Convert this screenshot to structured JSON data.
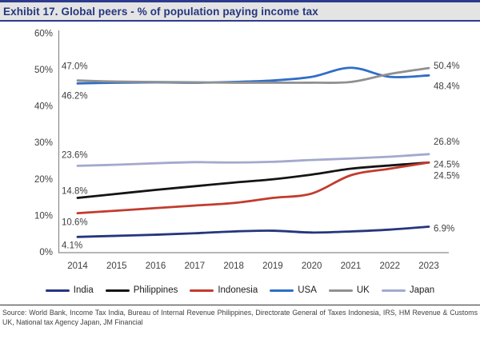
{
  "header": {
    "title": "Exhibit 17. Global peers - % of population paying income tax"
  },
  "footer": {
    "source": "Source: World Bank, Income Tax India, Bureau of Internal Revenue Philippines, Directorate General of Taxes Indonesia, IRS, HM Revenue & Customs UK, National tax Agency Japan, JM Financial"
  },
  "style": {
    "axis_color": "#8a8a8a",
    "tick_text_color": "#404040",
    "annotation_text_color": "#3f3f3f",
    "title_color": "#26367f",
    "title_bar_bg": "#e4e4e4",
    "title_bar_border": "#2d3a8d"
  },
  "chart_data": {
    "type": "line",
    "title": "Global peers - % of population paying income tax",
    "x": [
      "2014",
      "2015",
      "2016",
      "2017",
      "2018",
      "2019",
      "2020",
      "2021",
      "2022",
      "2023"
    ],
    "xlabel": "",
    "ylabel": "",
    "ylim": [
      0,
      60
    ],
    "y_ticks": [
      {
        "value": 60,
        "label": "60%"
      },
      {
        "value": 50,
        "label": "50%"
      },
      {
        "value": 40,
        "label": "40%"
      },
      {
        "value": 30,
        "label": "30%"
      },
      {
        "value": 20,
        "label": "20%"
      },
      {
        "value": 10,
        "label": "10%"
      },
      {
        "value": 0,
        "label": "0%"
      }
    ],
    "grid": false,
    "smoothed": true,
    "legend_position": "bottom",
    "series": [
      {
        "name": "India",
        "color": "#26357e",
        "values": [
          4.1,
          4.4,
          4.7,
          5.1,
          5.6,
          5.8,
          5.3,
          5.6,
          6.1,
          6.9
        ],
        "start_label": "4.1%",
        "end_label": "6.9%"
      },
      {
        "name": "Philippines",
        "color": "#141414",
        "values": [
          14.8,
          15.9,
          17.0,
          18.0,
          19.0,
          19.9,
          21.2,
          22.8,
          23.7,
          24.5
        ],
        "start_label": "14.8%",
        "end_label": "24.5%"
      },
      {
        "name": "Indonesia",
        "color": "#c23b2e",
        "values": [
          10.6,
          11.3,
          12.0,
          12.7,
          13.4,
          14.8,
          16.0,
          21.0,
          22.8,
          24.5
        ],
        "start_label": "10.6%",
        "end_label": "24.5%"
      },
      {
        "name": "USA",
        "color": "#2f6ec6",
        "values": [
          46.2,
          46.4,
          46.5,
          46.4,
          46.6,
          47.0,
          48.0,
          50.5,
          48.0,
          48.4
        ],
        "start_label": "46.2%",
        "end_label": "48.4%"
      },
      {
        "name": "UK",
        "color": "#909090",
        "values": [
          47.0,
          46.7,
          46.6,
          46.5,
          46.4,
          46.4,
          46.4,
          46.6,
          48.8,
          50.4
        ],
        "start_label": "47.0%",
        "end_label": "50.4%"
      },
      {
        "name": "Japan",
        "color": "#a3a9cd",
        "values": [
          23.6,
          23.9,
          24.3,
          24.6,
          24.5,
          24.7,
          25.2,
          25.6,
          26.1,
          26.8
        ],
        "start_label": "23.6%",
        "end_label": "26.8%"
      }
    ]
  }
}
